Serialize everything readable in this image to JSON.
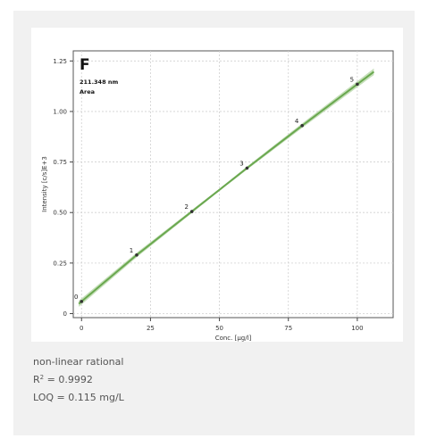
{
  "chart_data": {
    "type": "line",
    "panel_letter": "F",
    "annotation_wavelength": "211.348 nm",
    "annotation_mode": "Area",
    "xlabel": "Conc. [µg/l]",
    "ylabel": "Intensity [c/s]E+3",
    "xlim": [
      -3,
      113
    ],
    "ylim": [
      -0.02,
      1.3
    ],
    "x_ticks": [
      0,
      25,
      50,
      75,
      100
    ],
    "x_tick_labels": [
      "0",
      "25",
      "50",
      "75",
      "100"
    ],
    "y_ticks": [
      0,
      0.25,
      0.5,
      0.75,
      1.0,
      1.25
    ],
    "y_tick_labels": [
      "0",
      "0.25",
      "0.50",
      "0.75",
      "1.00",
      "1.25"
    ],
    "grid": true,
    "points": [
      {
        "label": "0",
        "x": 0,
        "y": 0.06
      },
      {
        "label": "1",
        "x": 20,
        "y": 0.29
      },
      {
        "label": "2",
        "x": 40,
        "y": 0.505
      },
      {
        "label": "3",
        "x": 60,
        "y": 0.72
      },
      {
        "label": "4",
        "x": 80,
        "y": 0.93
      },
      {
        "label": "5",
        "x": 100,
        "y": 1.135
      }
    ],
    "fit_color": "#6aa84f",
    "band_color": "#b6d7a8",
    "point_color": "#333333"
  },
  "caption": {
    "model": "non-linear rational",
    "r2_prefix": "R",
    "r2_sup": "2",
    "r2_value": " = 0.9992",
    "loq": "LOQ = 0.115 mg/L"
  }
}
